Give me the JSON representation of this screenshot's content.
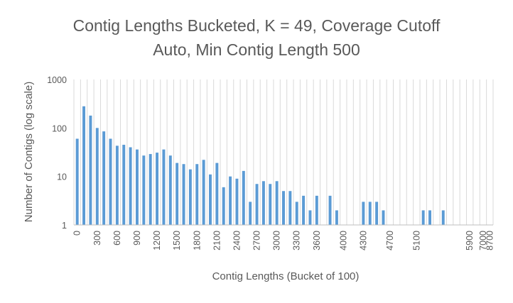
{
  "chart_data": {
    "type": "bar",
    "title": "Contig Lengths Bucketed, K = 49, Coverage Cutoff Auto, Min Contig Length 500",
    "title_lines": [
      "Contig Lengths Bucketed, K = 49, Coverage Cutoff",
      "Auto, Min Contig Length 500"
    ],
    "xlabel": "Contig Lengths (Bucket of 100)",
    "ylabel": "Number of Contigs (log scale)",
    "y_scale": "log",
    "ylim": [
      1,
      1000
    ],
    "y_ticks": [
      "1",
      "10",
      "100",
      "1000"
    ],
    "grid": "vertical",
    "bar_color": "#5b9bd5",
    "categories": [
      "0",
      "100",
      "200",
      "300",
      "400",
      "500",
      "600",
      "700",
      "800",
      "900",
      "1000",
      "1100",
      "1200",
      "1300",
      "1400",
      "1500",
      "1600",
      "1700",
      "1800",
      "1900",
      "2000",
      "2100",
      "2200",
      "2300",
      "2400",
      "2500",
      "2600",
      "2700",
      "2800",
      "2900",
      "3000",
      "3100",
      "3200",
      "3300",
      "3400",
      "3500",
      "3600",
      "3700",
      "3800",
      "3900",
      "4000",
      "4100",
      "4200",
      "4300",
      "4400",
      "4500",
      "4600",
      "4700",
      "4800",
      "4900",
      "5000",
      "5100",
      "5200",
      "5300",
      "5400",
      "5500",
      "5600",
      "5700",
      "5800",
      "5900",
      "6000",
      "7000",
      "8700"
    ],
    "x_tick_labels": [
      "0",
      "300",
      "600",
      "900",
      "1200",
      "1500",
      "1800",
      "2100",
      "2400",
      "2700",
      "3000",
      "3300",
      "3600",
      "4000",
      "4300",
      "4700",
      "5100",
      "5900",
      "7000",
      "8700"
    ],
    "values": [
      60,
      280,
      180,
      100,
      85,
      60,
      43,
      45,
      40,
      36,
      27,
      29,
      31,
      36,
      27,
      19,
      18,
      14,
      18,
      22,
      11,
      19,
      6,
      10,
      9,
      13,
      3,
      7,
      8,
      7,
      8,
      5,
      5,
      3,
      4,
      2,
      4,
      0,
      4,
      2,
      0,
      0,
      0,
      3,
      3,
      3,
      2,
      0,
      0,
      0,
      0,
      0,
      2,
      2,
      0,
      2,
      0,
      0,
      0,
      0,
      0,
      0,
      0
    ]
  }
}
